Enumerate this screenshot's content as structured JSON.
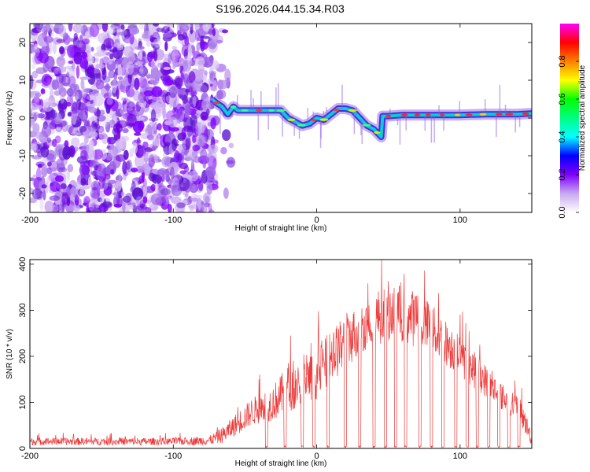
{
  "figure": {
    "title": "S196.2026.044.15.34.R03"
  },
  "chart_data": [
    {
      "type": "heatmap",
      "panel": "spectrogram",
      "xlabel": "Height of straight line (km)",
      "ylabel": "Frequency (Hz)",
      "xlim": [
        -200,
        150
      ],
      "ylim": [
        -25,
        25
      ],
      "xticks": [
        -200,
        -100,
        0,
        100
      ],
      "yticks": [
        -20,
        -10,
        0,
        10,
        20
      ],
      "noise_region_x": [
        -200,
        -73
      ],
      "trace": {
        "x": [
          -73,
          -70,
          -66,
          -62,
          -58,
          -55,
          -50,
          -40,
          -30,
          -25,
          -20,
          -15,
          -10,
          -5,
          0,
          5,
          10,
          15,
          20,
          25,
          30,
          35,
          40,
          45,
          46,
          50,
          60,
          80,
          100,
          120,
          140,
          150
        ],
        "freq": [
          5,
          4,
          3,
          1,
          3,
          2,
          2,
          2,
          2,
          2,
          0,
          -1,
          -2,
          -1.5,
          0,
          -0.5,
          1,
          2.5,
          2.5,
          2,
          0,
          -2,
          -3,
          -5,
          0.5,
          0.5,
          0.8,
          0.8,
          0.8,
          1,
          1,
          1.2
        ]
      },
      "colorbar": {
        "label": "Normalized spectral amplitude",
        "range": [
          0.0,
          1.0
        ],
        "ticks": [
          "0.0",
          "0.2",
          "0.4",
          "0.6",
          "0.8"
        ],
        "tick_values": [
          0.0,
          0.2,
          0.4,
          0.6,
          0.8
        ],
        "colors": [
          "#ffffff",
          "#c8a8f0",
          "#8000ff",
          "#0000ff",
          "#00ffff",
          "#00ff80",
          "#00ff00",
          "#ffff00",
          "#ff8000",
          "#ff0000",
          "#ff00ff"
        ]
      }
    },
    {
      "type": "line",
      "panel": "snr",
      "xlabel": "Height of straight line (km)",
      "ylabel": "SNR (10 * v/v)",
      "xlim": [
        -200,
        150
      ],
      "ylim": [
        0,
        410
      ],
      "xticks": [
        -200,
        -100,
        0,
        100
      ],
      "yticks": [
        0,
        100,
        200,
        300,
        400
      ],
      "color": "#ee3b3b",
      "envelope": {
        "x": [
          -200,
          -150,
          -100,
          -75,
          -65,
          -55,
          -45,
          -30,
          -20,
          -10,
          0,
          10,
          20,
          30,
          40,
          50,
          60,
          70,
          80,
          90,
          100,
          110,
          120,
          130,
          140,
          145,
          150
        ],
        "mean": [
          15,
          15,
          15,
          17,
          30,
          55,
          80,
          100,
          130,
          140,
          160,
          200,
          230,
          260,
          280,
          300,
          290,
          280,
          260,
          230,
          200,
          170,
          140,
          110,
          90,
          60,
          20
        ],
        "spread": [
          8,
          8,
          8,
          10,
          18,
          25,
          30,
          40,
          50,
          55,
          55,
          60,
          60,
          55,
          60,
          65,
          65,
          60,
          55,
          50,
          45,
          40,
          35,
          30,
          30,
          25,
          15
        ]
      },
      "dropouts_x": [
        -35,
        -22,
        -10,
        -2,
        8,
        20,
        30,
        40,
        48,
        55,
        62,
        72,
        80,
        88,
        97,
        105,
        112,
        120,
        127,
        134,
        141
      ]
    }
  ]
}
